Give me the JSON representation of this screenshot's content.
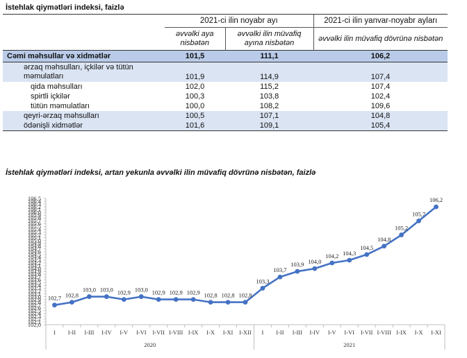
{
  "table": {
    "title": "İstehlak qiymətləri indeksi, faizlə",
    "header": {
      "group1": "2021-ci ilin noyabr ayı",
      "group2": "2021-ci ilin yanvar-noyabr ayları",
      "col1": "əvvəlki aya nisbətən",
      "col2": "əvvəlki ilin müvafiq ayına nisbətən",
      "col3": "əvvəlki ilin müvafiq dövrünə nisbətən"
    },
    "rows": [
      {
        "label": "Cəmi məhsullar və xidmətlər",
        "v1": "101,5",
        "v2": "111,1",
        "v3": "106,2"
      },
      {
        "label": "ərzaq məhsulları, içkilər və tütün məmulatları",
        "v1": "101,9",
        "v2": "114,9",
        "v3": "107,4"
      },
      {
        "label": "qida məhsulları",
        "v1": "102,0",
        "v2": "115,2",
        "v3": "107,4"
      },
      {
        "label": "spirtli içkilər",
        "v1": "100,3",
        "v2": "103,8",
        "v3": "102,4"
      },
      {
        "label": "tütün məmulatları",
        "v1": "100,0",
        "v2": "108,2",
        "v3": "109,6"
      },
      {
        "label": "qeyri-ərzaq məhsulları",
        "v1": "100,5",
        "v2": "107,1",
        "v3": "104,8"
      },
      {
        "label": "ödənişli xidmətlər",
        "v1": "101,6",
        "v2": "109,1",
        "v3": "105,4"
      }
    ]
  },
  "chart_data": {
    "type": "line",
    "title": "İstehlak qiymətləri indeksi, artan yekunla əvvəlki ilin müvafiq dövrünə nisbətən, faizlə",
    "categories": [
      "I",
      "I-II",
      "I-III",
      "I-IV",
      "I-V",
      "I-VI",
      "I-VII",
      "I-VIII",
      "I-IX",
      "I-X",
      "I-XI",
      "I-XII",
      "I",
      "I-II",
      "I-III",
      "I-IV",
      "I-V",
      "I-VI",
      "I-VII",
      "I-VIII",
      "I-IX",
      "I-X",
      "I-XI"
    ],
    "groups": [
      {
        "label": "2020",
        "count": 12
      },
      {
        "label": "2021",
        "count": 11
      }
    ],
    "values": [
      102.7,
      102.8,
      103.0,
      103.0,
      102.9,
      103.0,
      102.9,
      102.9,
      102.9,
      102.8,
      102.8,
      102.8,
      103.3,
      103.7,
      103.9,
      104.0,
      104.2,
      104.3,
      104.5,
      104.8,
      105.2,
      105.7,
      106.2
    ],
    "labels": [
      "102,7",
      "102,8",
      "103,0",
      "103,0",
      "102,9",
      "103,0",
      "102,9",
      "102,9",
      "102,9",
      "102,8",
      "102,8",
      "102,8",
      "103,3",
      "103,7",
      "103,9",
      "104,0",
      "104,2",
      "104,3",
      "104,5",
      "104,8",
      "105,2",
      "105,7",
      "106,2"
    ],
    "ylim": [
      102.0,
      106.5
    ],
    "yticks": [
      "102,0",
      "102,1",
      "102,2",
      "102,3",
      "102,4",
      "102,5",
      "102,6",
      "102,7",
      "102,8",
      "102,9",
      "103,0",
      "103,1",
      "103,2",
      "103,3",
      "103,4",
      "103,5",
      "103,6",
      "103,7",
      "103,8",
      "103,9",
      "104,0",
      "104,1",
      "104,2",
      "104,3",
      "104,4",
      "104,5",
      "104,6",
      "104,7",
      "104,8",
      "104,9",
      "105,0",
      "105,1",
      "105,2",
      "105,3",
      "105,4",
      "105,5",
      "105,6",
      "105,7",
      "105,8",
      "105,9",
      "106,0",
      "106,1",
      "106,2",
      "106,3",
      "106,4",
      "106,5"
    ],
    "line_color": "#4472c4",
    "grid": false
  }
}
